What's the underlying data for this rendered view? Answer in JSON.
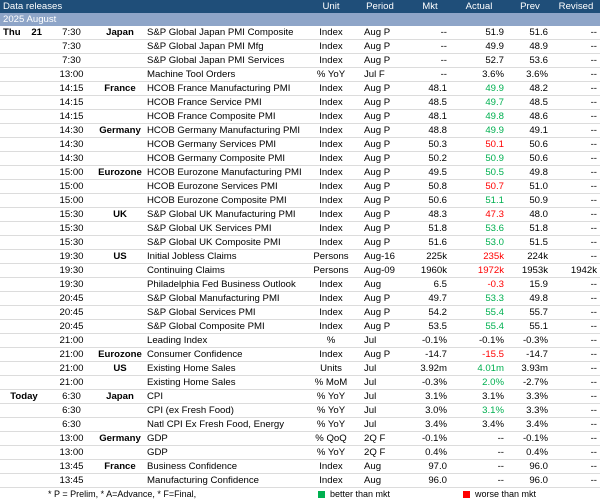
{
  "header": {
    "title": "Data releases",
    "unit": "Unit",
    "period": "Period",
    "mkt": "Mkt",
    "actual": "Actual",
    "prev": "Prev",
    "revised": "Revised"
  },
  "month": "2025 August",
  "colors": {
    "header_bg": "#1f4e79",
    "month_bg": "#8ea5c8",
    "better": "#00b050",
    "worse": "#ff0000"
  },
  "rows": [
    {
      "day": "Thu",
      "date": "21",
      "time": "7:30",
      "country": "Japan",
      "event": "S&P Global Japan PMI Composite",
      "unit": "Index",
      "period": "Aug P",
      "mkt": "--",
      "actual": "51.9",
      "prev": "51.6",
      "revised": "--"
    },
    {
      "time": "7:30",
      "event": "S&P Global Japan PMI Mfg",
      "unit": "Index",
      "period": "Aug P",
      "mkt": "--",
      "actual": "49.9",
      "prev": "48.9",
      "revised": "--"
    },
    {
      "time": "7:30",
      "event": "S&P Global Japan PMI Services",
      "unit": "Index",
      "period": "Aug P",
      "mkt": "--",
      "actual": "52.7",
      "prev": "53.6",
      "revised": "--"
    },
    {
      "time": "13:00",
      "event": "Machine Tool Orders",
      "unit": "% YoY",
      "period": "Jul F",
      "mkt": "--",
      "actual": "3.6%",
      "prev": "3.6%",
      "revised": "--"
    },
    {
      "time": "14:15",
      "country": "France",
      "event": "HCOB France Manufacturing PMI",
      "unit": "Index",
      "period": "Aug P",
      "mkt": "48.1",
      "actual": "49.9",
      "actual_color": "#00b050",
      "prev": "48.2",
      "revised": "--"
    },
    {
      "time": "14:15",
      "event": "HCOB France Service PMI",
      "unit": "Index",
      "period": "Aug P",
      "mkt": "48.5",
      "actual": "49.7",
      "actual_color": "#00b050",
      "prev": "48.5",
      "revised": "--"
    },
    {
      "time": "14:15",
      "event": "HCOB France Composite PMI",
      "unit": "Index",
      "period": "Aug P",
      "mkt": "48.1",
      "actual": "49.8",
      "actual_color": "#00b050",
      "prev": "48.6",
      "revised": "--"
    },
    {
      "time": "14:30",
      "country": "Germany",
      "event": "HCOB Germany Manufacturing PMI",
      "unit": "Index",
      "period": "Aug P",
      "mkt": "48.8",
      "actual": "49.9",
      "actual_color": "#00b050",
      "prev": "49.1",
      "revised": "--"
    },
    {
      "time": "14:30",
      "event": "HCOB Germany Services PMI",
      "unit": "Index",
      "period": "Aug P",
      "mkt": "50.3",
      "actual": "50.1",
      "actual_color": "#ff0000",
      "prev": "50.6",
      "revised": "--"
    },
    {
      "time": "14:30",
      "event": "HCOB Germany Composite PMI",
      "unit": "Index",
      "period": "Aug P",
      "mkt": "50.2",
      "actual": "50.9",
      "actual_color": "#00b050",
      "prev": "50.6",
      "revised": "--"
    },
    {
      "time": "15:00",
      "country": "Eurozone",
      "event": "HCOB Eurozone Manufacturing PMI",
      "unit": "Index",
      "period": "Aug P",
      "mkt": "49.5",
      "actual": "50.5",
      "actual_color": "#00b050",
      "prev": "49.8",
      "revised": "--"
    },
    {
      "time": "15:00",
      "event": "HCOB Eurozone Services PMI",
      "unit": "Index",
      "period": "Aug P",
      "mkt": "50.8",
      "actual": "50.7",
      "actual_color": "#ff0000",
      "prev": "51.0",
      "revised": "--"
    },
    {
      "time": "15:00",
      "event": "HCOB Eurozone Composite PMI",
      "unit": "Index",
      "period": "Aug P",
      "mkt": "50.6",
      "actual": "51.1",
      "actual_color": "#00b050",
      "prev": "50.9",
      "revised": "--"
    },
    {
      "time": "15:30",
      "country": "UK",
      "event": "S&P Global UK Manufacturing PMI",
      "unit": "Index",
      "period": "Aug P",
      "mkt": "48.3",
      "actual": "47.3",
      "actual_color": "#ff0000",
      "prev": "48.0",
      "revised": "--"
    },
    {
      "time": "15:30",
      "event": "S&P Global UK Services PMI",
      "unit": "Index",
      "period": "Aug P",
      "mkt": "51.8",
      "actual": "53.6",
      "actual_color": "#00b050",
      "prev": "51.8",
      "revised": "--"
    },
    {
      "time": "15:30",
      "event": "S&P Global UK Composite PMI",
      "unit": "Index",
      "period": "Aug P",
      "mkt": "51.6",
      "actual": "53.0",
      "actual_color": "#00b050",
      "prev": "51.5",
      "revised": "--"
    },
    {
      "time": "19:30",
      "country": "US",
      "event": "Initial Jobless Claims",
      "unit": "Persons",
      "period": "Aug-16",
      "mkt": "225k",
      "actual": "235k",
      "actual_color": "#ff0000",
      "prev": "224k",
      "revised": "--"
    },
    {
      "time": "19:30",
      "event": "Continuing Claims",
      "unit": "Persons",
      "period": "Aug-09",
      "mkt": "1960k",
      "actual": "1972k",
      "actual_color": "#ff0000",
      "prev": "1953k",
      "revised": "1942k"
    },
    {
      "time": "19:30",
      "event": "Philadelphia Fed Business Outlook",
      "unit": "Index",
      "period": "Aug",
      "mkt": "6.5",
      "actual": "-0.3",
      "actual_color": "#ff0000",
      "prev": "15.9",
      "revised": "--"
    },
    {
      "time": "20:45",
      "event": "S&P Global Manufacturing PMI",
      "unit": "Index",
      "period": "Aug P",
      "mkt": "49.7",
      "actual": "53.3",
      "actual_color": "#00b050",
      "prev": "49.8",
      "revised": "--"
    },
    {
      "time": "20:45",
      "event": "S&P Global Services PMI",
      "unit": "Index",
      "period": "Aug P",
      "mkt": "54.2",
      "actual": "55.4",
      "actual_color": "#00b050",
      "prev": "55.7",
      "revised": "--"
    },
    {
      "time": "20:45",
      "event": "S&P Global Composite PMI",
      "unit": "Index",
      "period": "Aug P",
      "mkt": "53.5",
      "actual": "55.4",
      "actual_color": "#00b050",
      "prev": "55.1",
      "revised": "--"
    },
    {
      "time": "21:00",
      "event": "Leading Index",
      "unit": "%",
      "period": "Jul",
      "mkt": "-0.1%",
      "actual": "-0.1%",
      "prev": "-0.3%",
      "revised": "--"
    },
    {
      "time": "21:00",
      "country": "Eurozone",
      "event": "Consumer Confidence",
      "unit": "Index",
      "period": "Aug P",
      "mkt": "-14.7",
      "actual": "-15.5",
      "actual_color": "#ff0000",
      "prev": "-14.7",
      "revised": "--"
    },
    {
      "time": "21:00",
      "country": "US",
      "event": "Existing Home Sales",
      "unit": "Units",
      "period": "Jul",
      "mkt": "3.92m",
      "actual": "4.01m",
      "actual_color": "#00b050",
      "prev": "3.93m",
      "revised": "--"
    },
    {
      "time": "21:00",
      "event": "Existing Home Sales",
      "unit": "% MoM",
      "period": "Jul",
      "mkt": "-0.3%",
      "actual": "2.0%",
      "actual_color": "#00b050",
      "prev": "-2.7%",
      "revised": "--"
    },
    {
      "day": "Today",
      "time": "6:30",
      "country": "Japan",
      "event": "CPI",
      "unit": "% YoY",
      "period": "Jul",
      "mkt": "3.1%",
      "actual": "3.1%",
      "prev": "3.3%",
      "revised": "--"
    },
    {
      "time": "6:30",
      "event": "CPI (ex Fresh Food)",
      "unit": "% YoY",
      "period": "Jul",
      "mkt": "3.0%",
      "actual": "3.1%",
      "actual_color": "#00b050",
      "prev": "3.3%",
      "revised": "--"
    },
    {
      "time": "6:30",
      "event": "Natl CPI Ex Fresh Food, Energy",
      "unit": "% YoY",
      "period": "Jul",
      "mkt": "3.4%",
      "actual": "3.4%",
      "prev": "3.4%",
      "revised": "--"
    },
    {
      "time": "13:00",
      "country": "Germany",
      "event": "GDP",
      "unit": "% QoQ",
      "period": "2Q F",
      "mkt": "-0.1%",
      "actual": "--",
      "prev": "-0.1%",
      "revised": "--"
    },
    {
      "time": "13:00",
      "event": "GDP",
      "unit": "% YoY",
      "period": "2Q F",
      "mkt": "0.4%",
      "actual": "--",
      "prev": "0.4%",
      "revised": "--"
    },
    {
      "time": "13:45",
      "country": "France",
      "event": "Business Confidence",
      "unit": "Index",
      "period": "Aug",
      "mkt": "97.0",
      "actual": "--",
      "prev": "96.0",
      "revised": "--"
    },
    {
      "time": "13:45",
      "event": "Manufacturing Confidence",
      "unit": "Index",
      "period": "Aug",
      "mkt": "96.0",
      "actual": "--",
      "prev": "96.0",
      "revised": "--"
    }
  ],
  "footer": {
    "notes": "* P = Prelim, * A=Advance, * F=Final,",
    "legend": [
      {
        "label": "better than mkt",
        "color": "#00b050"
      },
      {
        "label": "worse than mkt",
        "color": "#ff0000"
      }
    ]
  }
}
